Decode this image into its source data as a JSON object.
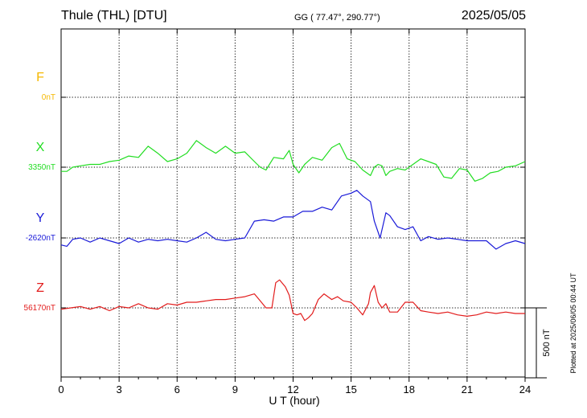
{
  "header": {
    "station": "Thule (THL)  [DTU]",
    "coords": "GG ( 77.47°, 290.77°)",
    "date": "2025/05/05"
  },
  "side_note": "Plotted at 2025/06/05 00:44 UT",
  "chart_data": {
    "type": "line",
    "xlabel": "U T (hour)",
    "xlim": [
      0,
      24
    ],
    "xticks": [
      0,
      3,
      6,
      9,
      12,
      15,
      18,
      21,
      24
    ],
    "grid": true,
    "scale_bar": {
      "label": "500 nT",
      "value_nT": 500
    },
    "series": [
      {
        "name": "F",
        "baseline_label": "0nT",
        "color": "#f5b800",
        "x": [],
        "values": []
      },
      {
        "name": "X",
        "baseline_label": "3350nT",
        "color": "#22dd22",
        "x": [
          0,
          0.3,
          0.6,
          1,
          1.5,
          2,
          2.5,
          3,
          3.5,
          4,
          4.5,
          5,
          5.5,
          6,
          6.5,
          7,
          7.5,
          8,
          8.5,
          9,
          9.5,
          10,
          10.3,
          10.6,
          11,
          11.5,
          11.8,
          12,
          12.3,
          12.6,
          13,
          13.5,
          14,
          14.4,
          14.8,
          15.2,
          15.6,
          16,
          16.2,
          16.4,
          16.6,
          16.8,
          17,
          17.4,
          17.8,
          18.2,
          18.6,
          19,
          19.4,
          19.8,
          20.2,
          20.6,
          21,
          21.4,
          21.8,
          22.2,
          22.6,
          23,
          23.5,
          24
        ],
        "values": [
          -30,
          -30,
          0,
          10,
          20,
          20,
          40,
          50,
          80,
          70,
          150,
          100,
          40,
          60,
          100,
          190,
          140,
          100,
          150,
          100,
          110,
          40,
          0,
          -20,
          70,
          60,
          120,
          20,
          -40,
          20,
          70,
          50,
          140,
          170,
          60,
          40,
          -20,
          -60,
          0,
          20,
          10,
          -60,
          -30,
          -10,
          -20,
          20,
          60,
          40,
          20,
          -70,
          -80,
          -10,
          -20,
          -100,
          -80,
          -40,
          -30,
          0,
          10,
          40
        ]
      },
      {
        "name": "Y",
        "baseline_label": "-2620nT",
        "color": "#1a1ad8",
        "x": [
          0,
          0.3,
          0.6,
          1,
          1.5,
          2,
          2.5,
          3,
          3.5,
          4,
          4.5,
          5,
          5.5,
          6,
          6.5,
          7,
          7.5,
          8,
          8.5,
          9,
          9.5,
          10,
          10.5,
          11,
          11.5,
          12,
          12.5,
          13,
          13.5,
          14,
          14.5,
          15,
          15.3,
          15.6,
          16,
          16.2,
          16.5,
          16.8,
          17,
          17.4,
          17.8,
          18.2,
          18.6,
          19,
          19.5,
          20,
          20.5,
          21,
          21.5,
          22,
          22.5,
          23,
          23.5,
          24
        ],
        "values": [
          -50,
          -60,
          -10,
          0,
          -30,
          0,
          -20,
          -40,
          0,
          -30,
          -10,
          -20,
          -10,
          -20,
          -30,
          0,
          40,
          -10,
          -20,
          -10,
          0,
          120,
          130,
          120,
          150,
          150,
          190,
          190,
          220,
          200,
          300,
          320,
          340,
          300,
          260,
          120,
          0,
          180,
          160,
          80,
          60,
          80,
          -20,
          10,
          -10,
          0,
          -10,
          -20,
          -20,
          -20,
          -80,
          -40,
          -20,
          -40
        ]
      },
      {
        "name": "Z",
        "baseline_label": "56170nT",
        "color": "#e21c1c",
        "x": [
          0,
          0.5,
          1,
          1.5,
          2,
          2.5,
          3,
          3.5,
          4,
          4.5,
          5,
          5.5,
          6,
          6.5,
          7,
          7.5,
          8,
          8.5,
          9,
          9.5,
          10,
          10.3,
          10.6,
          10.9,
          11.1,
          11.3,
          11.6,
          11.8,
          12,
          12.2,
          12.4,
          12.6,
          12.8,
          13,
          13.3,
          13.6,
          14,
          14.3,
          14.6,
          15,
          15.3,
          15.6,
          15.9,
          16,
          16.2,
          16.4,
          16.6,
          16.8,
          17,
          17.4,
          17.8,
          18.2,
          18.6,
          19,
          19.5,
          20,
          20.5,
          21,
          21.5,
          22,
          22.5,
          23,
          23.5,
          24
        ],
        "values": [
          -10,
          0,
          10,
          -10,
          10,
          -20,
          10,
          0,
          30,
          0,
          -10,
          30,
          20,
          40,
          40,
          50,
          60,
          60,
          70,
          80,
          100,
          50,
          0,
          0,
          180,
          200,
          150,
          90,
          -40,
          -50,
          -40,
          -90,
          -70,
          -40,
          60,
          100,
          60,
          80,
          50,
          40,
          0,
          -50,
          30,
          110,
          160,
          40,
          0,
          30,
          -30,
          -30,
          40,
          40,
          -20,
          -30,
          -40,
          -30,
          -50,
          -60,
          -50,
          -30,
          -40,
          -30,
          -40,
          -40
        ]
      }
    ]
  }
}
